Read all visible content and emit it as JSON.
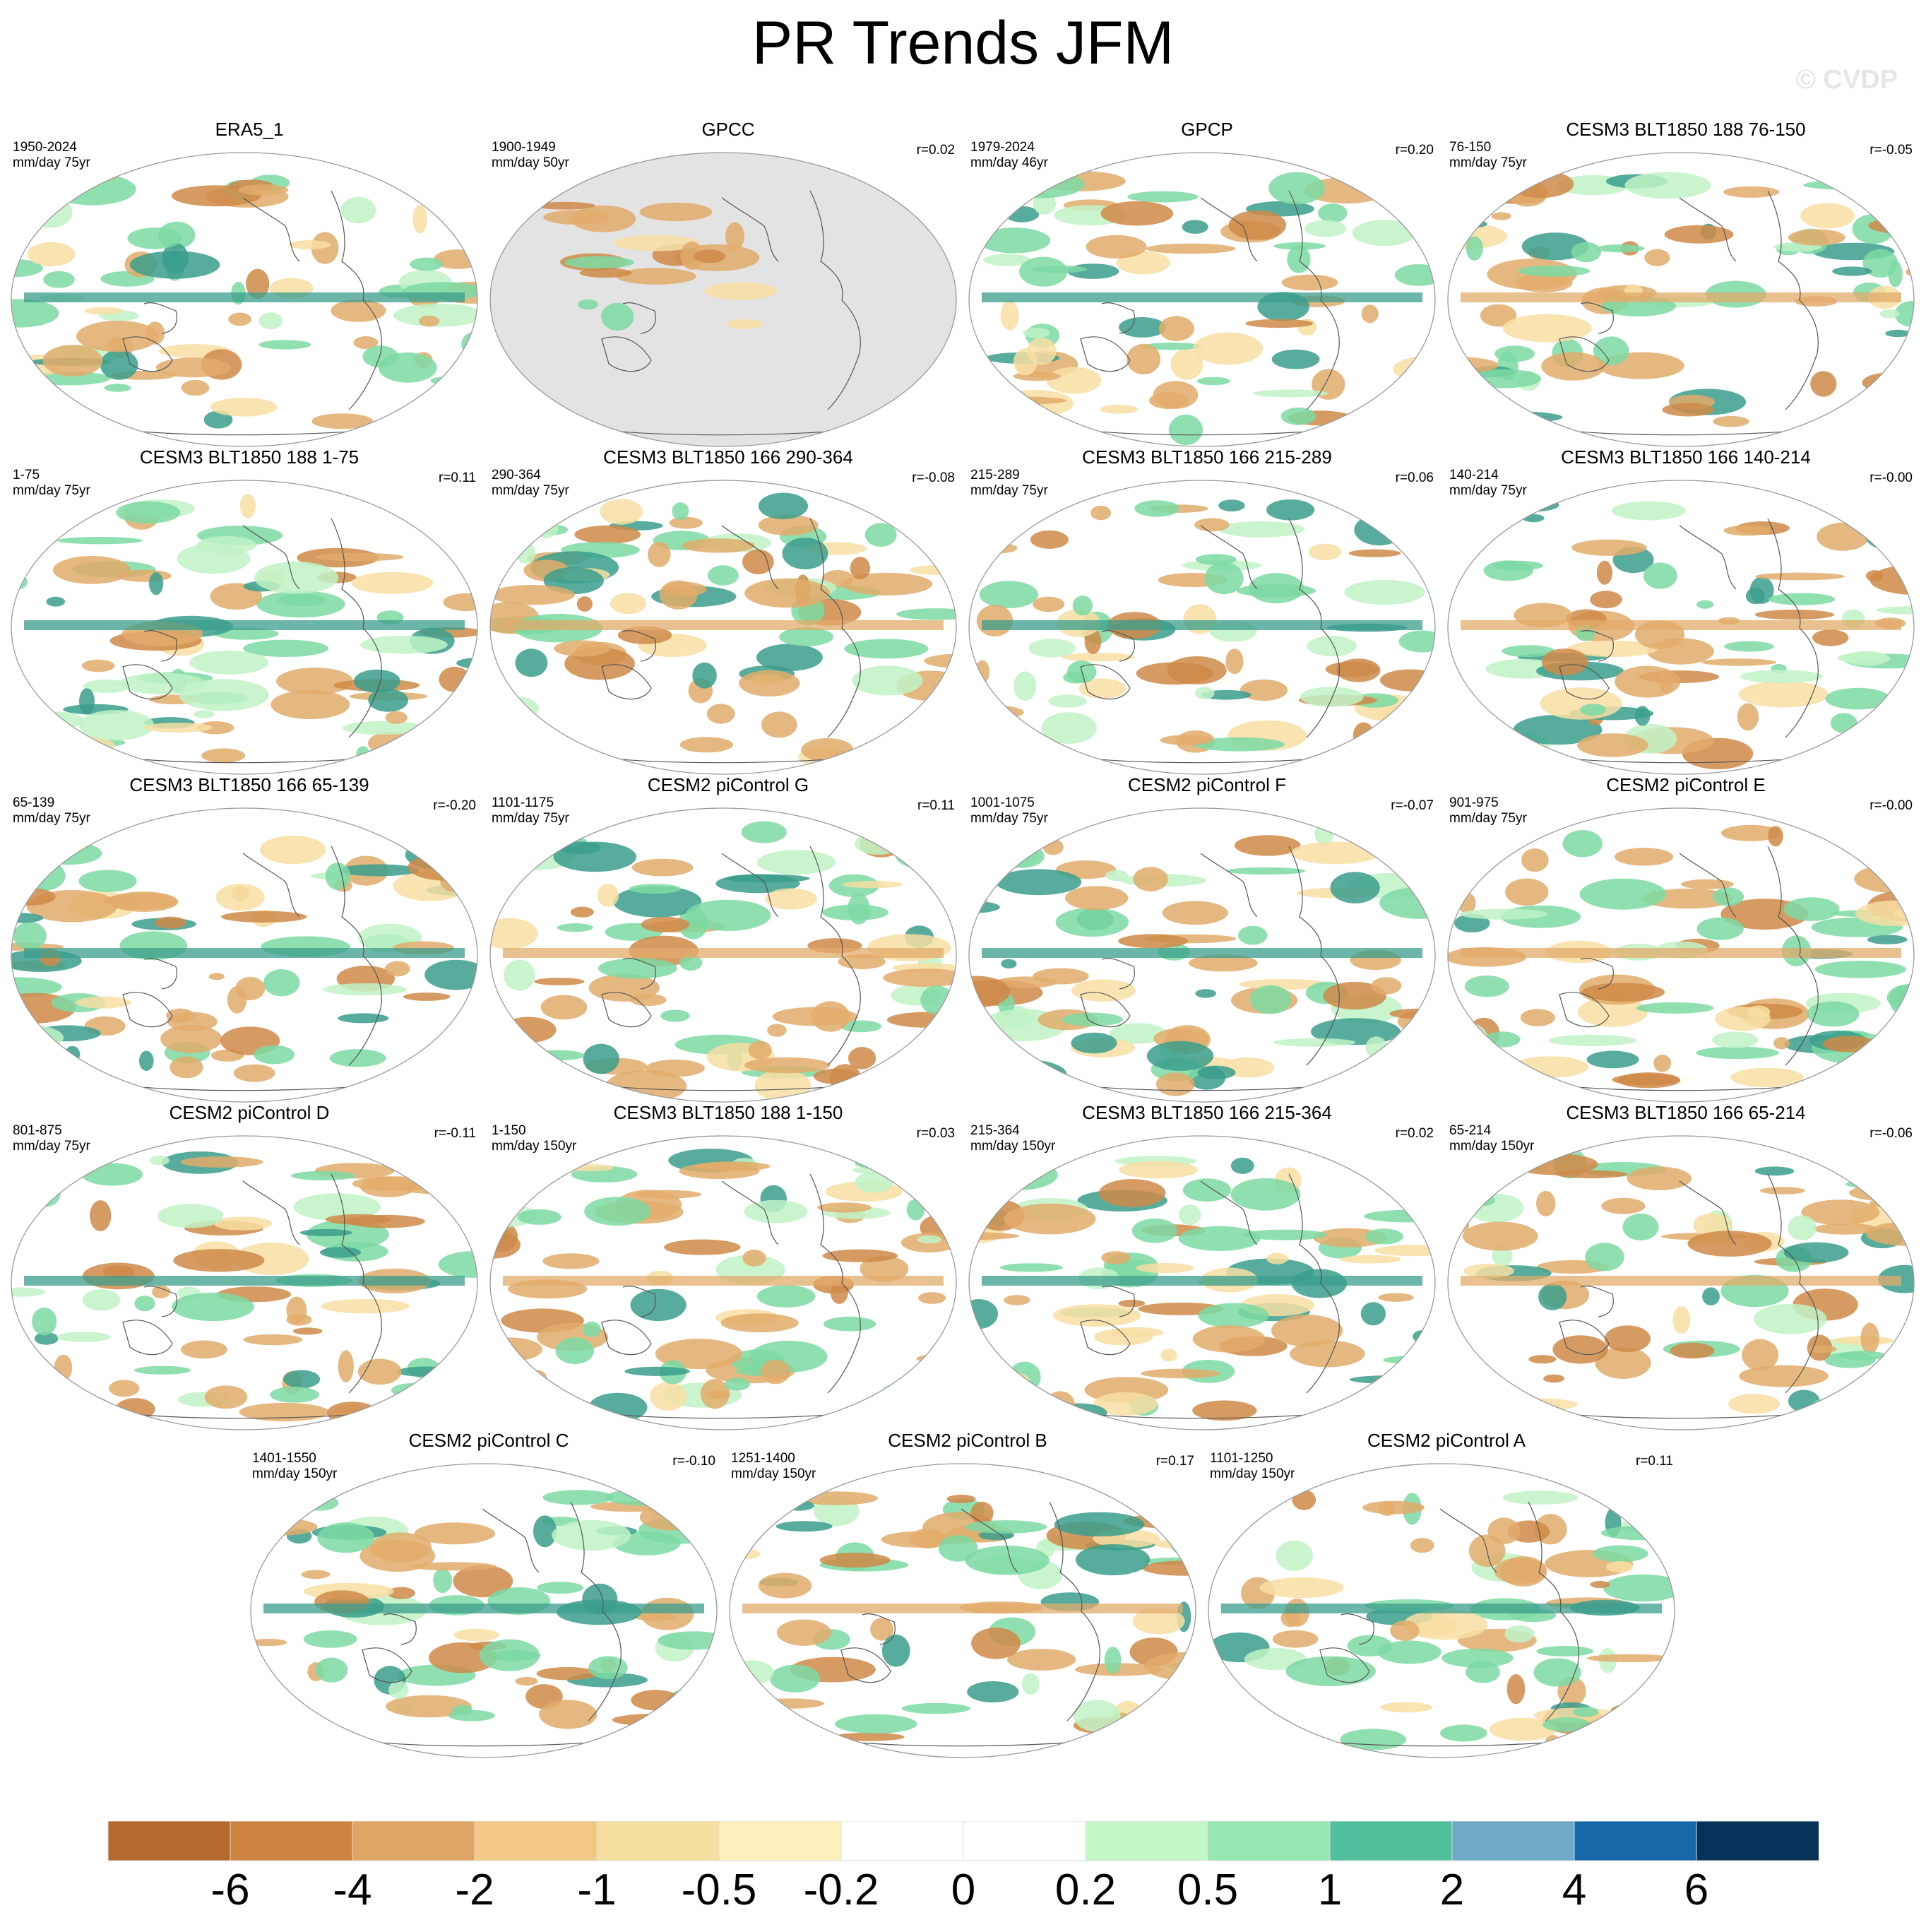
{
  "figure_title": "PR Trends JFM",
  "watermark": "© CVDP",
  "panels": [
    {
      "title": "ERA5_1",
      "years": "1950-2024",
      "units": "mm/day 75yr",
      "r": ""
    },
    {
      "title": "GPCC",
      "years": "1900-1949",
      "units": "mm/day 50yr",
      "r": "r=0.02"
    },
    {
      "title": "GPCP",
      "years": "1979-2024",
      "units": "mm/day 46yr",
      "r": "r=0.20"
    },
    {
      "title": "CESM3 BLT1850 188 76-150",
      "years": "76-150",
      "units": "mm/day 75yr",
      "r": "r=-0.05"
    },
    {
      "title": "CESM3 BLT1850 188 1-75",
      "years": "1-75",
      "units": "mm/day 75yr",
      "r": "r=0.11"
    },
    {
      "title": "CESM3 BLT1850 166 290-364",
      "years": "290-364",
      "units": "mm/day 75yr",
      "r": "r=-0.08"
    },
    {
      "title": "CESM3 BLT1850 166 215-289",
      "years": "215-289",
      "units": "mm/day 75yr",
      "r": "r=0.06"
    },
    {
      "title": "CESM3 BLT1850 166 140-214",
      "years": "140-214",
      "units": "mm/day 75yr",
      "r": "r=-0.00"
    },
    {
      "title": "CESM3 BLT1850 166 65-139",
      "years": "65-139",
      "units": "mm/day 75yr",
      "r": "r=-0.20"
    },
    {
      "title": "CESM2 piControl G",
      "years": "1101-1175",
      "units": "mm/day 75yr",
      "r": "r=0.11"
    },
    {
      "title": "CESM2 piControl F",
      "years": "1001-1075",
      "units": "mm/day 75yr",
      "r": "r=-0.07"
    },
    {
      "title": "CESM2 piControl E",
      "years": "901-975",
      "units": "mm/day 75yr",
      "r": "r=-0.00"
    },
    {
      "title": "CESM2 piControl D",
      "years": "801-875",
      "units": "mm/day 75yr",
      "r": "r=-0.11"
    },
    {
      "title": "CESM3 BLT1850 188 1-150",
      "years": "1-150",
      "units": "mm/day 150yr",
      "r": "r=0.03"
    },
    {
      "title": "CESM3 BLT1850 166 215-364",
      "years": "215-364",
      "units": "mm/day 150yr",
      "r": "r=0.02"
    },
    {
      "title": "CESM3 BLT1850 166 65-214",
      "years": "65-214",
      "units": "mm/day 150yr",
      "r": "r=-0.06"
    },
    {
      "title": "CESM2 piControl C",
      "years": "1401-1550",
      "units": "mm/day 150yr",
      "r": "r=-0.10"
    },
    {
      "title": "CESM2 piControl B",
      "years": "1251-1400",
      "units": "mm/day 150yr",
      "r": "r=0.17"
    },
    {
      "title": "CESM2 piControl A",
      "years": "1101-1250",
      "units": "mm/day 150yr",
      "r": "r=0.11"
    }
  ],
  "colorbar": {
    "colors": [
      "#b5692f",
      "#cd8443",
      "#df a565",
      "#f2c886",
      "#f5dfa0",
      "#fdf0bd",
      "#ffffff",
      "#ffffff",
      "#c3f7c8",
      "#96e8b0",
      "#52bf9c",
      "#70a8c8",
      "#1668a8",
      "#083358"
    ],
    "labels": [
      "-6",
      "-4",
      "-2",
      "-1",
      "-0.5",
      "-0.2",
      "0",
      "0.2",
      "0.5",
      "1",
      "2",
      "4",
      "6"
    ]
  },
  "missing_data_color": "#e3e3e3",
  "trend_palette": {
    "dry": "#e2ab6b",
    "wet": "#7dd9a3",
    "strong_wet": "#3b9e8c",
    "strong_dry": "#cf8a48"
  }
}
